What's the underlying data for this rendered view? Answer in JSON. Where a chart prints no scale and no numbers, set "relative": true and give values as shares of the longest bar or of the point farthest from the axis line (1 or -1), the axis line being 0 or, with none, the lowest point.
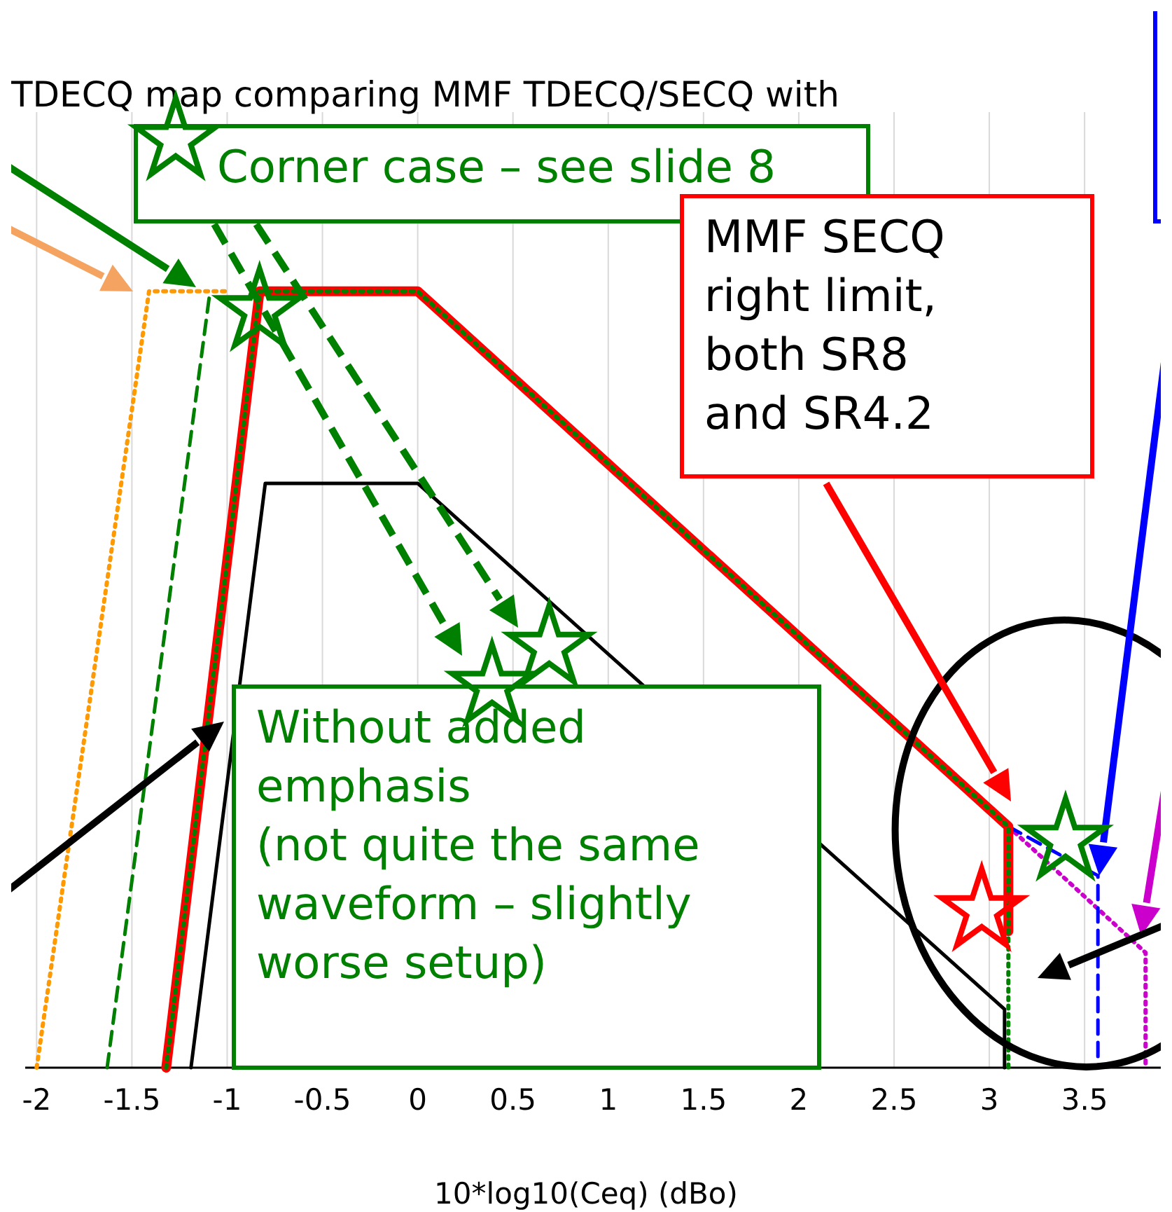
{
  "chart_data": {
    "type": "line",
    "title": "TDECQ map comparing MMF TDECQ/SECQ with",
    "xlabel": "10*log10(Ceq) (dBo)",
    "relative": true,
    "grid": "x",
    "xlim": [
      -2.06,
      3.9
    ],
    "xticks": [
      -2,
      -1.5,
      -1,
      -0.5,
      0,
      0.5,
      1,
      1.5,
      2,
      2.5,
      3,
      3.5
    ],
    "series": [
      {
        "color": "#ff9900",
        "line_style": "dotted",
        "x": [
          -2,
          -1.41,
          -1.0
        ],
        "values": [
          0,
          0.837,
          0.837
        ]
      },
      {
        "color": "#008000",
        "line_style": "dashed",
        "x": [
          -1.63,
          -1.09
        ],
        "values": [
          0,
          0.837
        ]
      },
      {
        "color": "#000000",
        "line_style": "solid",
        "x": [
          -1.19,
          -0.8,
          0,
          3.08,
          3.08
        ],
        "values": [
          0,
          0.63,
          0.63,
          0.063,
          0
        ]
      },
      {
        "color": "#cc00cc",
        "line_style": "dotted",
        "x": [
          3.1,
          3.82,
          3.82
        ],
        "values": [
          0.26,
          0.124,
          0
        ]
      },
      {
        "color": "#0000ff",
        "line_style": "dashed",
        "x": [
          3.1,
          3.57,
          3.57
        ],
        "values": [
          0.26,
          0.207,
          0
        ]
      },
      {
        "color": "#ff0000",
        "line_style": "solid",
        "x": [
          -1.32,
          -0.83,
          0,
          3.1,
          3.1
        ],
        "values": [
          0,
          0.837,
          0.837,
          0.26,
          0.147
        ]
      },
      {
        "color": "#008000",
        "line_style": "dotted",
        "x": [
          -1.32,
          -0.83,
          0,
          3.1,
          3.1
        ],
        "values": [
          0,
          0.837,
          0.837,
          0.26,
          0
        ]
      },
      {
        "type": "scatter",
        "marker": "star",
        "color": "#008000",
        "x": [
          -1.27,
          -0.83,
          0.69,
          0.39,
          3.4
        ],
        "values": [
          1,
          0.816,
          0.453,
          0.411,
          0.245
        ]
      },
      {
        "type": "scatter",
        "marker": "star",
        "color": "#ff0000",
        "x": [
          2.96
        ],
        "values": [
          0.169
        ]
      }
    ],
    "annotations": [
      "Corner case – see slide 8",
      "MMF SECQ\nright limit,\nboth SR8\nand SR4.2",
      "Without added\nemphasis\n(not quite the same\nwaveform – slightly\nworse setup)"
    ]
  }
}
